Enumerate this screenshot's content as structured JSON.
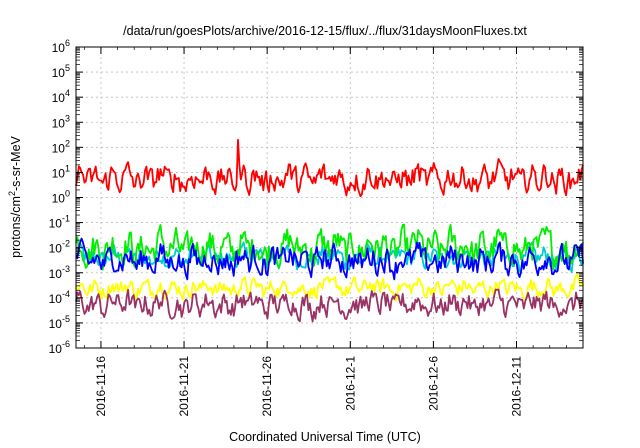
{
  "chart_data": {
    "type": "line",
    "title": "/data/run/goesPlots/archive/2016-12-15/flux/../flux/31daysMoonFluxes.txt",
    "xlabel": "Coordinated Universal Time (UTC)",
    "ylabel": {
      "pre": "protons/cm",
      "sup": "2",
      "post": "-s-sr-MeV"
    },
    "xlim": [
      "2016-11-14T12:00",
      "2016-12-15T00:00"
    ],
    "x_ticks": [
      {
        "label": "2016-11-16",
        "date": "2016-11-16"
      },
      {
        "label": "2016-11-21",
        "date": "2016-11-21"
      },
      {
        "label": "2016-11-26",
        "date": "2016-11-26"
      },
      {
        "label": "2016-12-1",
        "date": "2016-12-01"
      },
      {
        "label": "2016-12-6",
        "date": "2016-12-06"
      },
      {
        "label": "2016-12-11",
        "date": "2016-12-11"
      }
    ],
    "y_scale": "log",
    "ylim_exp": [
      -6,
      6
    ],
    "y_ticks": [
      {
        "base": "10",
        "exp": "-6"
      },
      {
        "base": "10",
        "exp": "-5"
      },
      {
        "base": "10",
        "exp": "-4"
      },
      {
        "base": "10",
        "exp": "-3"
      },
      {
        "base": "10",
        "exp": "-2"
      },
      {
        "base": "10",
        "exp": "-1"
      },
      {
        "base": "10",
        "exp": "0"
      },
      {
        "base": "10",
        "exp": "1"
      },
      {
        "base": "10",
        "exp": "2"
      },
      {
        "base": "10",
        "exp": "3"
      },
      {
        "base": "10",
        "exp": "4"
      },
      {
        "base": "10",
        "exp": "5"
      },
      {
        "base": "10",
        "exp": "6"
      }
    ],
    "grid": true,
    "series": [
      {
        "name": "red",
        "color": "#ff0000",
        "log_center": 0.75,
        "log_spread": 0.45,
        "spike": {
          "date": "2016-11-24T06:00",
          "value": 200
        }
      },
      {
        "name": "green",
        "color": "#00ee00",
        "log_center": -2.0,
        "log_spread": 0.55
      },
      {
        "name": "cyan",
        "color": "#00cccc",
        "log_center": -2.4,
        "log_spread": 0.35
      },
      {
        "name": "blue",
        "color": "#0000ff",
        "log_center": -2.5,
        "log_spread": 0.45
      },
      {
        "name": "yellow",
        "color": "#ffff00",
        "log_center": -3.6,
        "log_spread": 0.3
      },
      {
        "name": "purple",
        "color": "#993366",
        "log_center": -4.25,
        "log_spread": 0.4
      }
    ]
  }
}
